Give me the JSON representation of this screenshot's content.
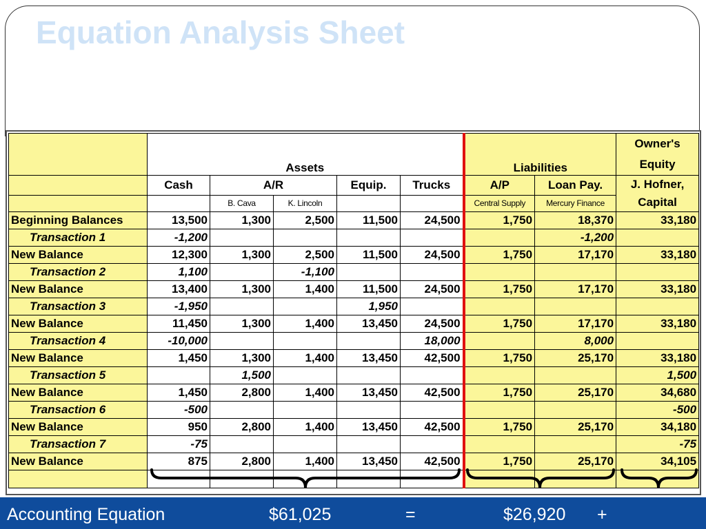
{
  "title": "Equation Analysis Sheet",
  "table": {
    "groups": [
      "Assets",
      "Liabilities",
      "Owner's Equity"
    ],
    "columns": [
      "Cash",
      "A/R",
      "Equip.",
      "Trucks",
      "A/P",
      "Loan Pay.",
      "J. Hofner, Capital"
    ],
    "subcolumns": [
      "B. Cava",
      "K. Lincoln",
      "Central Supply",
      "Mercury Finance"
    ],
    "rows": [
      {
        "label": "Beginning Balances",
        "values": [
          "13,500",
          "1,300",
          "2,500",
          "11,500",
          "24,500",
          "1,750",
          "18,370",
          "33,180"
        ]
      },
      {
        "label": "Transaction 1",
        "values": [
          "-1,200",
          null,
          null,
          null,
          null,
          null,
          "-1,200",
          null
        ]
      },
      {
        "label": "New Balance",
        "values": [
          "12,300",
          "1,300",
          "2,500",
          "11,500",
          "24,500",
          "1,750",
          "17,170",
          "33,180"
        ]
      },
      {
        "label": "Transaction 2",
        "values": [
          "1,100",
          null,
          "-1,100",
          null,
          null,
          null,
          null,
          null
        ]
      },
      {
        "label": "New Balance",
        "values": [
          "13,400",
          "1,300",
          "1,400",
          "11,500",
          "24,500",
          "1,750",
          "17,170",
          "33,180"
        ]
      },
      {
        "label": "Transaction 3",
        "values": [
          "-1,950",
          null,
          null,
          "1,950",
          null,
          null,
          null,
          null
        ]
      },
      {
        "label": "New Balance",
        "values": [
          "11,450",
          "1,300",
          "1,400",
          "13,450",
          "24,500",
          "1,750",
          "17,170",
          "33,180"
        ]
      },
      {
        "label": "Transaction 4",
        "values": [
          "-10,000",
          null,
          null,
          null,
          "18,000",
          null,
          "8,000",
          null
        ]
      },
      {
        "label": "New Balance",
        "values": [
          "1,450",
          "1,300",
          "1,400",
          "13,450",
          "42,500",
          "1,750",
          "25,170",
          "33,180"
        ]
      },
      {
        "label": "Transaction 5",
        "values": [
          null,
          "1,500",
          null,
          null,
          null,
          null,
          null,
          "1,500"
        ]
      },
      {
        "label": "New Balance",
        "values": [
          "1,450",
          "2,800",
          "1,400",
          "13,450",
          "42,500",
          "1,750",
          "25,170",
          "34,680"
        ]
      },
      {
        "label": "Transaction 6",
        "values": [
          "-500",
          null,
          null,
          null,
          null,
          null,
          null,
          "-500"
        ]
      },
      {
        "label": "New Balance",
        "values": [
          "950",
          "2,800",
          "1,400",
          "13,450",
          "42,500",
          "1,750",
          "25,170",
          "34,180"
        ]
      },
      {
        "label": "Transaction 7",
        "values": [
          "-75",
          null,
          null,
          null,
          null,
          null,
          null,
          "-75"
        ]
      },
      {
        "label": "New Balance",
        "values": [
          "875",
          "2,800",
          "1,400",
          "13,450",
          "42,500",
          "1,750",
          "25,170",
          "34,105"
        ]
      }
    ]
  },
  "footer": [
    "Accounting Equation",
    "$61,025",
    "=",
    "$26,920",
    "+"
  ]
}
